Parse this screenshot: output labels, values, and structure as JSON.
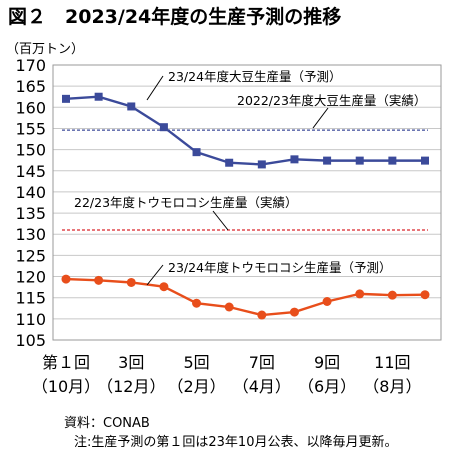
{
  "title": "図２　2023/24年度の生産予測の推移",
  "source": "資料：CONAB",
  "note": "注:生産予測の第１回は23年10月公表、以降毎月更新。",
  "chart_data": {
    "type": "line",
    "ylabel": "（百万トン）",
    "ylim": [
      105,
      170
    ],
    "yticks": [
      105,
      110,
      115,
      120,
      125,
      130,
      135,
      140,
      145,
      150,
      155,
      160,
      165,
      170
    ],
    "grid": true,
    "x": [
      1,
      2,
      3,
      4,
      5,
      6,
      7,
      8,
      9,
      10,
      11,
      12
    ],
    "xtick_labels": [
      {
        "x": 1,
        "top": "第１回",
        "bottom": "（10月）"
      },
      {
        "x": 3,
        "top": "3回",
        "bottom": "（12月）"
      },
      {
        "x": 5,
        "top": "5回",
        "bottom": "（2月）"
      },
      {
        "x": 7,
        "top": "7回",
        "bottom": "（4月）"
      },
      {
        "x": 9,
        "top": "9回",
        "bottom": "（6月）"
      },
      {
        "x": 11,
        "top": "11回",
        "bottom": "（8月）"
      }
    ],
    "series": [
      {
        "name": "23/24年度大豆生産量（予測）",
        "color": "#3b4a9a",
        "style": "solid-marker",
        "values": [
          162.0,
          162.5,
          160.2,
          155.3,
          149.4,
          146.9,
          146.5,
          147.7,
          147.4,
          147.4,
          147.4,
          147.4
        ]
      },
      {
        "name": "23/24年度トウモロコシ生産量（予測）",
        "color": "#e84e1b",
        "style": "solid-marker",
        "values": [
          119.4,
          119.1,
          118.6,
          117.6,
          113.7,
          112.8,
          110.9,
          111.6,
          114.1,
          115.9,
          115.6,
          115.7
        ]
      }
    ],
    "reference_lines": [
      {
        "name": "2022/23年度大豆生産量（実績）",
        "value": 154.6,
        "color": "#3b4a9a"
      },
      {
        "name": "22/23年度トウモロコシ生産量（実績）",
        "value": 131.0,
        "color": "#d9252a"
      }
    ]
  }
}
